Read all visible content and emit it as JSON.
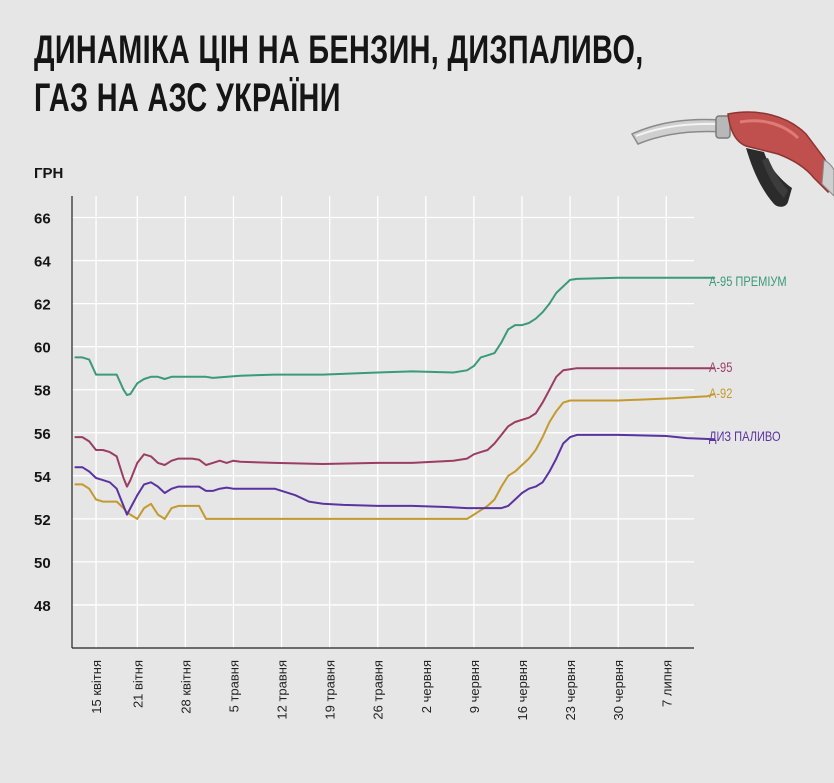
{
  "title_lines": [
    "ДИНАМІКА ЦІН НА БЕНЗИН, ДИЗПАЛИВО,",
    "ГАЗ НА АЗС УКРАЇНИ"
  ],
  "colors": {
    "background": "#e6e6e6",
    "grid": "#ffffff",
    "axis": "#222222",
    "a95_premium": "#3a9a7b",
    "a95": "#9b3c62",
    "a92": "#c49a2f",
    "diesel": "#5a33a0",
    "nozzle": "#c0504d"
  },
  "icons": [
    "fuel-nozzle-icon"
  ],
  "chart_data": {
    "type": "line",
    "ylabel": "ГРН",
    "ylim": [
      46,
      67
    ],
    "yticks": [
      48,
      50,
      52,
      54,
      56,
      58,
      60,
      62,
      64,
      66
    ],
    "xlim": [
      0,
      94
    ],
    "xticks": [
      {
        "day": 4,
        "label": "15 квітня"
      },
      {
        "day": 10,
        "label": "21 вітня"
      },
      {
        "day": 17,
        "label": "28 квітня"
      },
      {
        "day": 24,
        "label": "5 травня"
      },
      {
        "day": 31,
        "label": "12 травня"
      },
      {
        "day": 38,
        "label": "19 травня"
      },
      {
        "day": 45,
        "label": "26 травня"
      },
      {
        "day": 52,
        "label": "2 червня"
      },
      {
        "day": 59,
        "label": "9 червня"
      },
      {
        "day": 66,
        "label": "16 червня"
      },
      {
        "day": 73,
        "label": "23 червня"
      },
      {
        "day": 80,
        "label": "30 червня"
      },
      {
        "day": 87,
        "label": "7 липня"
      }
    ],
    "series": [
      {
        "name": "А-95 ПРЕМІУМ",
        "color": "#3a9a7b",
        "x": [
          1,
          2,
          3,
          4,
          5,
          6,
          7,
          8,
          8.5,
          9,
          10,
          11,
          12,
          13,
          14,
          15,
          20,
          21,
          25,
          30,
          37,
          45,
          50,
          56,
          58,
          59,
          60,
          61,
          62,
          63,
          64,
          65,
          66,
          67,
          68,
          69,
          70,
          71,
          72,
          73,
          74,
          80,
          94
        ],
        "y": [
          59.5,
          59.5,
          59.4,
          58.7,
          58.7,
          58.7,
          58.7,
          58.0,
          57.75,
          57.8,
          58.3,
          58.5,
          58.6,
          58.6,
          58.5,
          58.6,
          58.6,
          58.55,
          58.65,
          58.7,
          58.7,
          58.8,
          58.85,
          58.8,
          58.9,
          59.1,
          59.5,
          59.6,
          59.7,
          60.2,
          60.8,
          61.0,
          61.0,
          61.1,
          61.3,
          61.6,
          62.0,
          62.5,
          62.8,
          63.1,
          63.15,
          63.2,
          63.2
        ]
      },
      {
        "name": "А-95",
        "color": "#9b3c62",
        "x": [
          1,
          2,
          3,
          4,
          5,
          6,
          7,
          8,
          8.5,
          9,
          10,
          11,
          12,
          13,
          14,
          15,
          16,
          17,
          18,
          19,
          20,
          21,
          22,
          23,
          24,
          25,
          30,
          37,
          45,
          50,
          56,
          58,
          59,
          60,
          61,
          62,
          63,
          64,
          65,
          66,
          67,
          68,
          69,
          70,
          71,
          72,
          73,
          74,
          80,
          94
        ],
        "y": [
          55.8,
          55.8,
          55.6,
          55.2,
          55.2,
          55.1,
          54.9,
          53.9,
          53.5,
          53.8,
          54.6,
          55.0,
          54.9,
          54.6,
          54.5,
          54.7,
          54.8,
          54.8,
          54.8,
          54.75,
          54.5,
          54.6,
          54.7,
          54.6,
          54.7,
          54.65,
          54.6,
          54.55,
          54.6,
          54.6,
          54.7,
          54.8,
          55.0,
          55.1,
          55.2,
          55.5,
          55.9,
          56.3,
          56.5,
          56.6,
          56.7,
          56.9,
          57.4,
          58.0,
          58.6,
          58.9,
          58.95,
          59.0,
          59.0,
          59.0
        ]
      },
      {
        "name": "А-92",
        "color": "#c49a2f",
        "x": [
          1,
          2,
          3,
          4,
          5,
          6,
          7,
          8,
          8.5,
          9,
          10,
          11,
          12,
          13,
          14,
          15,
          16,
          17,
          18,
          19,
          20,
          21,
          22,
          25,
          30,
          35,
          38,
          44,
          50,
          55,
          58,
          59,
          60,
          61,
          62,
          63,
          64,
          65,
          66,
          67,
          68,
          69,
          70,
          71,
          72,
          73,
          74,
          80,
          88,
          93,
          94
        ],
        "y": [
          53.6,
          53.6,
          53.4,
          52.9,
          52.8,
          52.8,
          52.8,
          52.5,
          52.3,
          52.2,
          52.0,
          52.5,
          52.7,
          52.2,
          52.0,
          52.5,
          52.6,
          52.6,
          52.6,
          52.6,
          52.0,
          52.0,
          52.0,
          52.0,
          52.0,
          52.0,
          52.0,
          52.0,
          52.0,
          52.0,
          52.0,
          52.2,
          52.4,
          52.6,
          52.9,
          53.5,
          54.0,
          54.2,
          54.5,
          54.8,
          55.2,
          55.8,
          56.5,
          57.0,
          57.4,
          57.5,
          57.5,
          57.5,
          57.6,
          57.7,
          57.8
        ]
      },
      {
        "name": "ДИЗ ПАЛИВО",
        "color": "#5a33a0",
        "x": [
          1,
          2,
          3,
          4,
          5,
          6,
          7,
          8,
          8.5,
          9,
          10,
          11,
          12,
          13,
          14,
          15,
          16,
          17,
          18,
          19,
          20,
          21,
          22,
          23,
          24,
          25,
          30,
          33,
          35,
          37,
          40,
          45,
          50,
          55,
          58,
          59,
          60,
          61,
          62,
          63,
          64,
          65,
          66,
          67,
          68,
          69,
          70,
          71,
          72,
          73,
          74,
          80,
          87,
          90,
          94
        ],
        "y": [
          54.4,
          54.4,
          54.2,
          53.9,
          53.8,
          53.7,
          53.4,
          52.6,
          52.2,
          52.5,
          53.1,
          53.6,
          53.7,
          53.5,
          53.2,
          53.4,
          53.5,
          53.5,
          53.5,
          53.5,
          53.3,
          53.3,
          53.4,
          53.45,
          53.4,
          53.4,
          53.4,
          53.1,
          52.8,
          52.7,
          52.65,
          52.6,
          52.6,
          52.55,
          52.5,
          52.5,
          52.5,
          52.5,
          52.5,
          52.5,
          52.6,
          52.9,
          53.2,
          53.4,
          53.5,
          53.7,
          54.2,
          54.8,
          55.5,
          55.8,
          55.9,
          55.9,
          55.85,
          55.75,
          55.7
        ]
      }
    ]
  }
}
